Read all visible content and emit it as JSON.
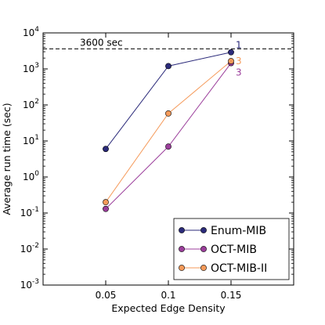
{
  "chart_data": {
    "type": "line",
    "xlabel": "Expected Edge Density",
    "ylabel": "Average run time (sec)",
    "yscale": "log",
    "xlim": [
      0.0,
      0.2
    ],
    "ylim": [
      0.001,
      10000
    ],
    "x_ticks": [
      0.05,
      0.1,
      0.15
    ],
    "x_tick_labels": [
      "0.05",
      "0.1",
      "0.15"
    ],
    "y_ticks": [
      {
        "value": 0.001,
        "base": "10",
        "exp": "-3"
      },
      {
        "value": 0.01,
        "base": "10",
        "exp": "-2"
      },
      {
        "value": 0.1,
        "base": "10",
        "exp": "-1"
      },
      {
        "value": 1,
        "base": "10",
        "exp": "0"
      },
      {
        "value": 10,
        "base": "10",
        "exp": "1"
      },
      {
        "value": 100,
        "base": "10",
        "exp": "2"
      },
      {
        "value": 1000,
        "base": "10",
        "exp": "3"
      },
      {
        "value": 10000,
        "base": "10",
        "exp": "4"
      }
    ],
    "grid": false,
    "legend_position": "bottom-right",
    "reference_line": {
      "y": 3600,
      "label": "3600 sec",
      "style": "dashed",
      "color": "#000000"
    },
    "series": [
      {
        "name": "Enum-MIB",
        "color": "#2b2a7a",
        "x": [
          0.05,
          0.1,
          0.15
        ],
        "y": [
          6,
          1200,
          2900
        ],
        "end_label": "1"
      },
      {
        "name": "OCT-MIB",
        "color": "#9b3e9b",
        "x": [
          0.05,
          0.1,
          0.15
        ],
        "y": [
          0.13,
          7,
          1450
        ],
        "end_label": "3"
      },
      {
        "name": "OCT-MIB-II",
        "color": "#f59a5a",
        "x": [
          0.05,
          0.1,
          0.15
        ],
        "y": [
          0.2,
          58,
          1650
        ],
        "end_label": "3"
      }
    ]
  }
}
